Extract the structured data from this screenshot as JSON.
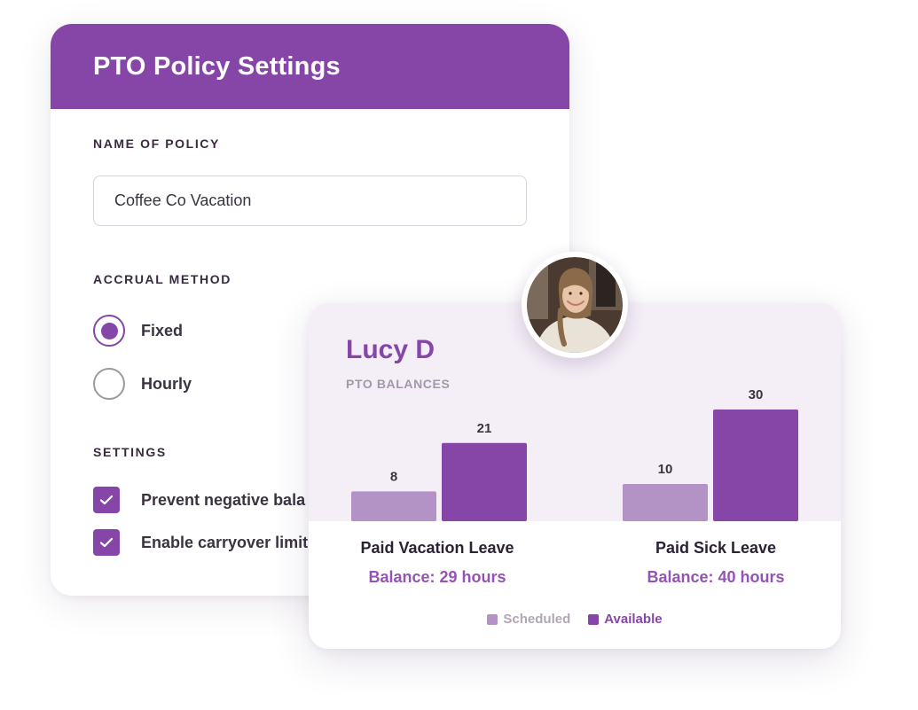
{
  "policy": {
    "title": "PTO Policy Settings",
    "name_label": "NAME OF POLICY",
    "name_value": "Coffee Co Vacation",
    "accrual_label": "ACCRUAL METHOD",
    "accrual_options": [
      {
        "label": "Fixed",
        "selected": true
      },
      {
        "label": "Hourly",
        "selected": false
      }
    ],
    "settings_label": "SETTINGS",
    "settings": [
      {
        "label": "Prevent negative bala",
        "checked": true,
        "icon": "check-icon"
      },
      {
        "label": "Enable carryover limit",
        "checked": true,
        "icon": "check-icon"
      }
    ]
  },
  "employee": {
    "name": "Lucy D",
    "subtitle": "PTO BALANCES",
    "categories": [
      {
        "name": "Paid Vacation Leave",
        "balance": "Balance: 29 hours"
      },
      {
        "name": "Paid Sick Leave",
        "balance": "Balance: 40 hours"
      }
    ],
    "legend": {
      "scheduled": "Scheduled",
      "available": "Available"
    }
  },
  "colors": {
    "brand": "#8646a8",
    "scheduled": "#b393c6",
    "available": "#8646a8",
    "balance_text": "#9453b6"
  },
  "chart_data": {
    "type": "bar",
    "categories": [
      "Paid Vacation Leave",
      "Paid Sick Leave"
    ],
    "series": [
      {
        "name": "Scheduled",
        "values": [
          8,
          10
        ]
      },
      {
        "name": "Available",
        "values": [
          21,
          30
        ]
      }
    ],
    "ylim": [
      0,
      30
    ],
    "legend": "bottom-center",
    "grid": false
  }
}
